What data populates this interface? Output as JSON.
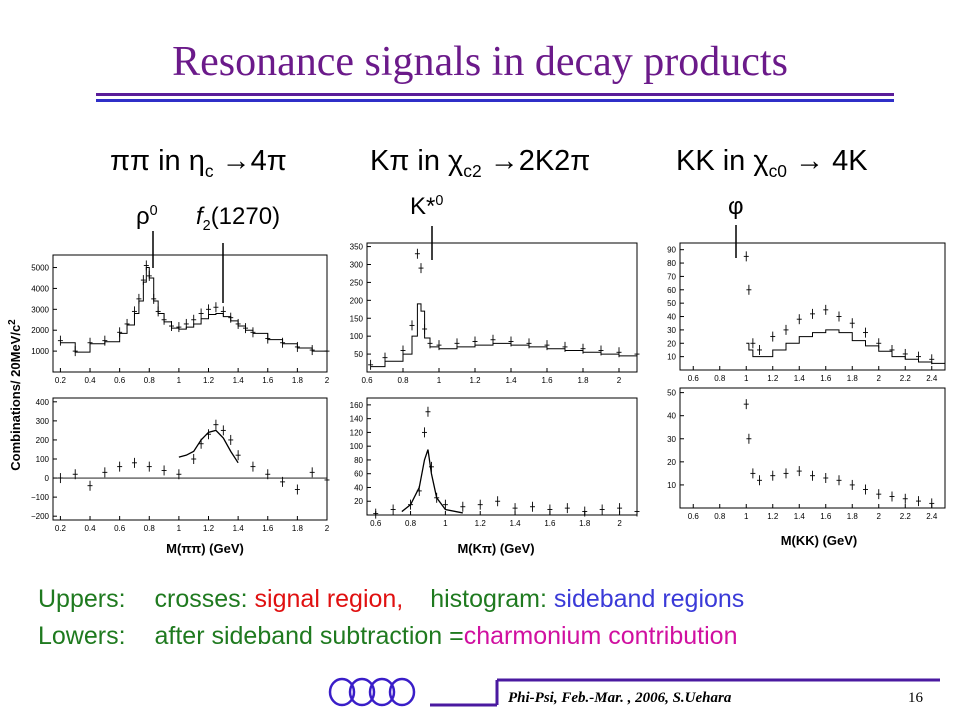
{
  "slide": {
    "title": "Resonance signals in decay products",
    "headers": [
      {
        "pre": "ππ in η",
        "sub": "c",
        "post": " →4π"
      },
      {
        "pre": "Kπ in χ",
        "sub": "c2",
        "post": " →2K2π"
      },
      {
        "pre": "KK in χ",
        "sub": "c0",
        "post": " → 4K"
      }
    ],
    "peaks": {
      "rho": {
        "sym": "ρ",
        "sup": "0"
      },
      "f2": {
        "sym": "f",
        "sub": "2",
        "tail": "(1270)"
      },
      "kstar": {
        "sym": "K*",
        "sup": "0"
      },
      "phi": {
        "sym": "φ"
      }
    },
    "ylabel": "Combinations/ 20MeV/c",
    "ylabel_sup": "2",
    "xlabels": [
      "M(ππ) (GeV)",
      "M(Kπ) (GeV)",
      "M(KK) (GeV)"
    ],
    "legend": {
      "uppers_label": "Uppers:",
      "crosses_label": "crosses:",
      "signal_region": "signal region,",
      "histogram_label": "histogram:",
      "sideband_regions": "sideband regions",
      "lowers_label": "Lowers:",
      "lowers_text": "after sideband subtraction =",
      "charmonium": "charmonium contribution",
      "colors": {
        "green": "#1f7a1f",
        "red": "#e01010",
        "blue": "#3a3ad8",
        "magenta": "#d010a0"
      }
    },
    "footer": {
      "text": "Phi-Psi, Feb.-Mar. , 2006, S.Uehara",
      "page": "16",
      "ring_color": "#3a1ec8",
      "line_color": "#4a1aa0"
    }
  },
  "chart_data": [
    {
      "type": "line",
      "panel": "pipi-upper",
      "x_ticks": [
        "0.2",
        "0.4",
        "0.6",
        "0.8",
        "1",
        "1.2",
        "1.4",
        "1.6",
        "1.8",
        "2"
      ],
      "y_ticks": [
        "1000",
        "2000",
        "3000",
        "4000",
        "5000"
      ],
      "xlim": [
        0.15,
        2.0
      ],
      "ylim": [
        0,
        5600
      ],
      "series": [
        {
          "role": "signal-crosses",
          "x": [
            0.2,
            0.3,
            0.4,
            0.5,
            0.6,
            0.65,
            0.7,
            0.73,
            0.76,
            0.78,
            0.8,
            0.83,
            0.86,
            0.9,
            0.95,
            1.0,
            1.05,
            1.1,
            1.15,
            1.2,
            1.25,
            1.3,
            1.35,
            1.4,
            1.45,
            1.5,
            1.6,
            1.7,
            1.8,
            1.9,
            2.0
          ],
          "y": [
            1500,
            1000,
            1400,
            1500,
            1900,
            2300,
            2900,
            3500,
            4400,
            5100,
            4600,
            3500,
            2900,
            2500,
            2200,
            2150,
            2300,
            2500,
            2800,
            3000,
            3100,
            2900,
            2600,
            2300,
            2100,
            1900,
            1600,
            1400,
            1200,
            1050,
            1000
          ]
        },
        {
          "role": "sideband-histogram",
          "x": [
            0.2,
            0.3,
            0.4,
            0.5,
            0.6,
            0.65,
            0.7,
            0.73,
            0.76,
            0.78,
            0.8,
            0.83,
            0.86,
            0.9,
            0.95,
            1.0,
            1.05,
            1.1,
            1.15,
            1.2,
            1.25,
            1.3,
            1.35,
            1.4,
            1.45,
            1.5,
            1.6,
            1.7,
            1.8,
            1.9,
            2.0
          ],
          "y": [
            1400,
            950,
            1350,
            1450,
            1850,
            2250,
            2800,
            3400,
            4300,
            5000,
            4500,
            3400,
            2800,
            2400,
            2100,
            2050,
            2150,
            2300,
            2550,
            2750,
            2800,
            2650,
            2450,
            2200,
            2000,
            1850,
            1550,
            1350,
            1150,
            1000,
            950
          ]
        }
      ]
    },
    {
      "type": "line",
      "panel": "pipi-lower",
      "x_ticks": [
        "0.2",
        "0.4",
        "0.6",
        "0.8",
        "1",
        "1.2",
        "1.4",
        "1.6",
        "1.8",
        "2"
      ],
      "y_ticks": [
        "−200",
        "−100",
        "0",
        "100",
        "200",
        "300",
        "400"
      ],
      "xlim": [
        0.15,
        2.0
      ],
      "ylim": [
        -220,
        420
      ],
      "series": [
        {
          "role": "subtracted",
          "x": [
            0.2,
            0.3,
            0.4,
            0.5,
            0.6,
            0.7,
            0.8,
            0.9,
            1.0,
            1.1,
            1.15,
            1.2,
            1.25,
            1.3,
            1.35,
            1.4,
            1.5,
            1.6,
            1.7,
            1.8,
            1.9,
            2.0
          ],
          "y": [
            0,
            20,
            -40,
            30,
            60,
            80,
            60,
            40,
            20,
            100,
            180,
            230,
            280,
            250,
            200,
            120,
            60,
            20,
            -20,
            -60,
            30,
            -10
          ]
        },
        {
          "role": "fit-curve",
          "x": [
            1.0,
            1.05,
            1.1,
            1.15,
            1.2,
            1.25,
            1.3,
            1.35,
            1.4
          ],
          "y": [
            110,
            120,
            140,
            200,
            240,
            250,
            210,
            140,
            80
          ]
        }
      ]
    },
    {
      "type": "line",
      "panel": "kpi-upper",
      "x_ticks": [
        "0.6",
        "0.8",
        "1",
        "1.2",
        "1.4",
        "1.6",
        "1.8",
        "2"
      ],
      "y_ticks": [
        "50",
        "100",
        "150",
        "200",
        "250",
        "300",
        "350"
      ],
      "xlim": [
        0.6,
        2.1
      ],
      "ylim": [
        0,
        360
      ],
      "series": [
        {
          "role": "signal-crosses",
          "x": [
            0.62,
            0.7,
            0.8,
            0.85,
            0.88,
            0.9,
            0.92,
            0.95,
            1.0,
            1.1,
            1.2,
            1.3,
            1.4,
            1.5,
            1.6,
            1.7,
            1.8,
            1.9,
            2.0,
            2.1
          ],
          "y": [
            20,
            40,
            60,
            130,
            330,
            290,
            120,
            80,
            75,
            80,
            85,
            90,
            85,
            80,
            75,
            70,
            65,
            60,
            55,
            50
          ]
        },
        {
          "role": "sideband-histogram",
          "x": [
            0.62,
            0.7,
            0.8,
            0.85,
            0.88,
            0.9,
            0.92,
            0.95,
            1.0,
            1.1,
            1.2,
            1.3,
            1.4,
            1.5,
            1.6,
            1.7,
            1.8,
            1.9,
            2.0,
            2.1
          ],
          "y": [
            15,
            30,
            50,
            100,
            190,
            170,
            95,
            70,
            65,
            70,
            75,
            80,
            75,
            70,
            65,
            60,
            55,
            50,
            45,
            40
          ]
        }
      ]
    },
    {
      "type": "line",
      "panel": "kpi-lower",
      "x_ticks": [
        "0.6",
        "0.8",
        "1",
        "1.2",
        "1.4",
        "1.6",
        "1.8",
        "2"
      ],
      "y_ticks": [
        "20",
        "40",
        "60",
        "80",
        "100",
        "120",
        "140",
        "160"
      ],
      "xlim": [
        0.55,
        2.1
      ],
      "ylim": [
        0,
        170
      ],
      "series": [
        {
          "role": "subtracted",
          "x": [
            0.6,
            0.7,
            0.8,
            0.85,
            0.88,
            0.9,
            0.92,
            0.95,
            1.0,
            1.1,
            1.2,
            1.3,
            1.4,
            1.5,
            1.6,
            1.7,
            1.8,
            1.9,
            2.0,
            2.1
          ],
          "y": [
            2,
            8,
            15,
            35,
            120,
            150,
            70,
            25,
            15,
            12,
            15,
            20,
            10,
            12,
            8,
            10,
            5,
            8,
            10,
            5
          ]
        },
        {
          "role": "fit-curve",
          "x": [
            0.75,
            0.8,
            0.85,
            0.88,
            0.9,
            0.92,
            0.95,
            1.0,
            1.1
          ],
          "y": [
            5,
            15,
            40,
            80,
            95,
            60,
            25,
            8,
            3
          ]
        }
      ]
    },
    {
      "type": "line",
      "panel": "kk-upper",
      "x_ticks": [
        "0.6",
        "0.8",
        "1",
        "1.2",
        "1.4",
        "1.6",
        "1.8",
        "2",
        "2.2",
        "2.4"
      ],
      "y_ticks": [
        "10",
        "20",
        "30",
        "40",
        "50",
        "60",
        "70",
        "80",
        "90"
      ],
      "xlim": [
        0.5,
        2.5
      ],
      "ylim": [
        0,
        95
      ],
      "series": [
        {
          "role": "signal-crosses",
          "x": [
            1.0,
            1.02,
            1.05,
            1.1,
            1.2,
            1.3,
            1.4,
            1.5,
            1.6,
            1.7,
            1.8,
            1.9,
            2.0,
            2.1,
            2.2,
            2.3,
            2.4
          ],
          "y": [
            85,
            60,
            20,
            15,
            25,
            30,
            38,
            42,
            45,
            40,
            35,
            28,
            20,
            15,
            12,
            10,
            8
          ]
        },
        {
          "role": "sideband-histogram",
          "x": [
            1.0,
            1.02,
            1.05,
            1.1,
            1.2,
            1.3,
            1.4,
            1.5,
            1.6,
            1.7,
            1.8,
            1.9,
            2.0,
            2.1,
            2.2,
            2.3,
            2.4
          ],
          "y": [
            20,
            15,
            10,
            10,
            15,
            20,
            25,
            28,
            30,
            28,
            22,
            18,
            14,
            10,
            8,
            6,
            5
          ]
        }
      ]
    },
    {
      "type": "line",
      "panel": "kk-lower",
      "x_ticks": [
        "0.6",
        "0.8",
        "1",
        "1.2",
        "1.4",
        "1.6",
        "1.8",
        "2",
        "2.2",
        "2.4"
      ],
      "y_ticks": [
        "10",
        "20",
        "30",
        "40",
        "50"
      ],
      "xlim": [
        0.5,
        2.5
      ],
      "ylim": [
        0,
        52
      ],
      "series": [
        {
          "role": "subtracted",
          "x": [
            1.0,
            1.02,
            1.05,
            1.1,
            1.2,
            1.3,
            1.4,
            1.5,
            1.6,
            1.7,
            1.8,
            1.9,
            2.0,
            2.1,
            2.2,
            2.3,
            2.4
          ],
          "y": [
            45,
            30,
            15,
            12,
            14,
            15,
            16,
            14,
            13,
            12,
            10,
            8,
            6,
            5,
            4,
            3,
            2
          ]
        }
      ]
    }
  ]
}
